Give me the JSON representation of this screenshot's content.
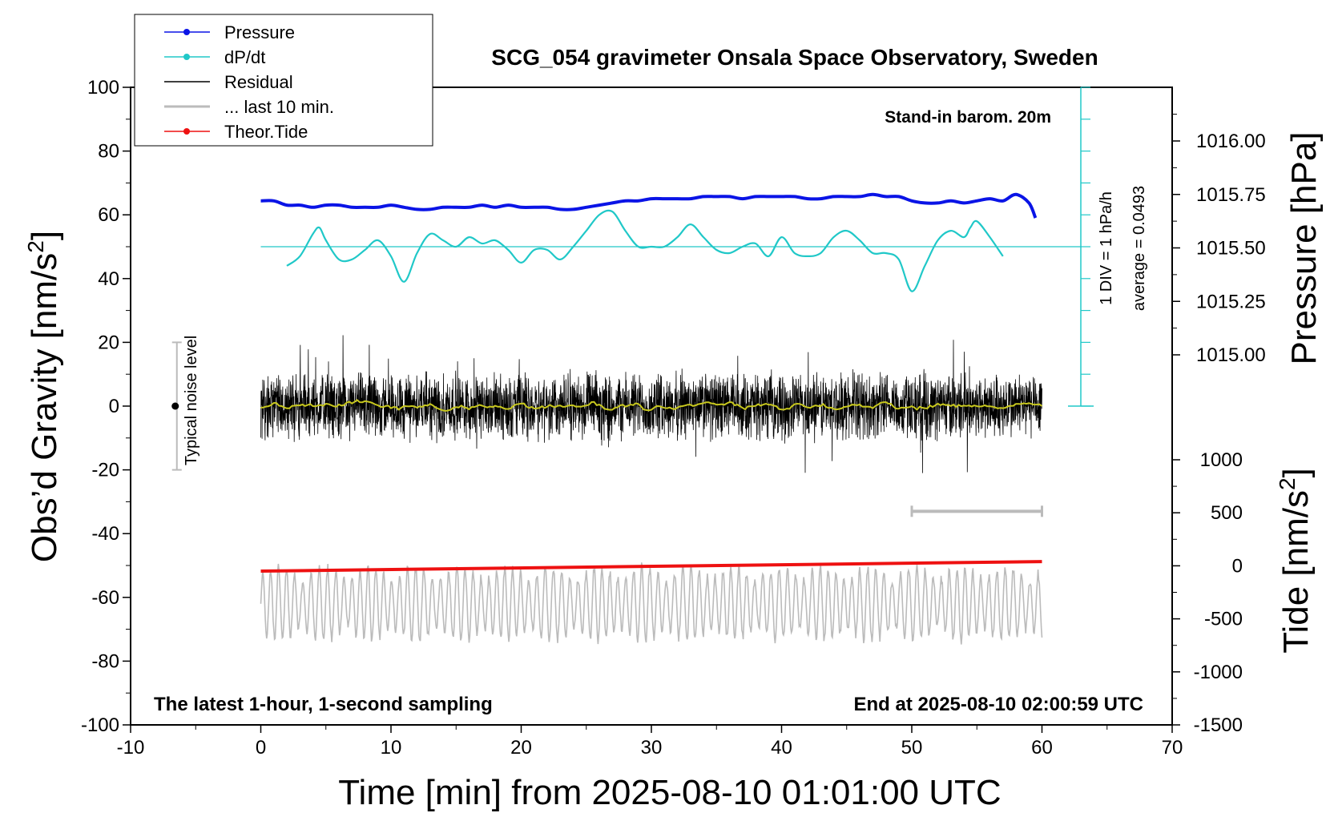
{
  "chart_data": {
    "type": "line",
    "title": "SCG_054 gravimeter Onsala Space Observatory, Sweden",
    "xlabel": "Time [min] from 2025-08-10 01:01:00 UTC",
    "ylabel_left_main": "Obs’d Gravity [nm/s",
    "ylabel_left_sup": "2",
    "ylabel_left_end": "]",
    "ylabel_right_top": "Pressure [hPa]",
    "ylabel_right_bottom_main": "Tide [nm/s",
    "ylabel_right_bottom_sup": "2",
    "ylabel_right_bottom_end": "]",
    "xlim": [
      -10,
      70
    ],
    "ylim_left": [
      -100,
      100
    ],
    "pressure_axis_ylim": [
      1015.0,
      1016.0
    ],
    "tide_axis_ylim": [
      -1500,
      1000
    ],
    "x_ticks": [
      "-10",
      "0",
      "10",
      "20",
      "30",
      "40",
      "50",
      "60",
      "70"
    ],
    "y_left_ticks": [
      "100",
      "80",
      "60",
      "40",
      "20",
      "0",
      "-20",
      "-40",
      "-60",
      "-80",
      "-100"
    ],
    "y_pressure_ticks": [
      "1016.00",
      "1015.75",
      "1015.50",
      "1015.25",
      "1015.00"
    ],
    "y_tide_ticks": [
      "1000",
      "500",
      "0",
      "-500",
      "-1000",
      "-1500"
    ],
    "legend_position": "top-left",
    "legend": [
      {
        "name": "Pressure",
        "color": "#0a14e6",
        "marker": true
      },
      {
        "name": "dP/dt",
        "color": "#20c8c8",
        "marker": true
      },
      {
        "name": "Residual",
        "color": "#000000",
        "marker": false
      },
      {
        "name": "... last 10 min.",
        "color": "#bbbbbb",
        "marker": false
      },
      {
        "name": "Theor.Tide",
        "color": "#ee1111",
        "marker": true
      }
    ],
    "annotations": {
      "barometer": "Stand-in barom. 20m",
      "sampling": "The latest 1-hour, 1-second sampling",
      "end_time": "End at 2025-08-10 02:00:59 UTC",
      "noise_label": "Typical noise level",
      "dpdt_scale": "1 DIV = 1 hPa/h",
      "dpdt_average": "average = 0.0493"
    },
    "colors": {
      "pressure": "#0a14e6",
      "dpdt": "#20c8c8",
      "residual": "#000000",
      "residual_smooth": "#c8c81e",
      "last10": "#bbbbbb",
      "tide": "#ee1111"
    },
    "series": [
      {
        "name": "Pressure",
        "axis": "pressure",
        "x": [
          0,
          1,
          2,
          3,
          4,
          5,
          6,
          7,
          8,
          9,
          10,
          11,
          12,
          13,
          14,
          15,
          16,
          17,
          18,
          19,
          20,
          21,
          22,
          23,
          24,
          25,
          26,
          27,
          28,
          29,
          30,
          31,
          32,
          33,
          34,
          35,
          36,
          37,
          38,
          39,
          40,
          41,
          42,
          43,
          44,
          45,
          46,
          47,
          48,
          49,
          50,
          51,
          52,
          53,
          54,
          55,
          56,
          57,
          58,
          59,
          59.5
        ],
        "values": [
          1015.72,
          1015.72,
          1015.7,
          1015.7,
          1015.69,
          1015.7,
          1015.7,
          1015.69,
          1015.69,
          1015.69,
          1015.7,
          1015.69,
          1015.68,
          1015.68,
          1015.69,
          1015.69,
          1015.69,
          1015.7,
          1015.69,
          1015.7,
          1015.69,
          1015.69,
          1015.69,
          1015.68,
          1015.68,
          1015.69,
          1015.7,
          1015.71,
          1015.72,
          1015.72,
          1015.73,
          1015.73,
          1015.73,
          1015.73,
          1015.74,
          1015.74,
          1015.74,
          1015.73,
          1015.74,
          1015.74,
          1015.74,
          1015.74,
          1015.73,
          1015.73,
          1015.74,
          1015.74,
          1015.74,
          1015.75,
          1015.74,
          1015.74,
          1015.72,
          1015.71,
          1015.71,
          1015.72,
          1015.71,
          1015.72,
          1015.73,
          1015.72,
          1015.75,
          1015.71,
          1015.64
        ]
      },
      {
        "name": "dP/dt",
        "axis": "left",
        "x": [
          2,
          3,
          4,
          4.5,
          5,
          6,
          7,
          8,
          9,
          10,
          11,
          12,
          13,
          14,
          15,
          16,
          17,
          18,
          19,
          20,
          21,
          22,
          23,
          24,
          25,
          26,
          27,
          28,
          29,
          30,
          31,
          32,
          33,
          34,
          35,
          36,
          37,
          38,
          39,
          40,
          41,
          42,
          43,
          44,
          45,
          46,
          47,
          48,
          49,
          50,
          51,
          52,
          53,
          54,
          54.5,
          55,
          56,
          57
        ],
        "values": [
          44,
          47,
          54,
          56,
          52,
          46,
          46,
          49,
          52,
          47,
          39,
          48,
          54,
          52,
          50,
          53,
          51,
          52,
          49,
          45,
          49,
          49,
          46,
          50,
          55,
          60,
          61,
          55,
          50,
          50,
          50,
          53,
          57,
          53,
          49,
          48,
          50,
          51,
          47,
          53,
          48,
          47,
          48,
          53,
          55,
          52,
          48,
          48,
          46,
          36,
          44,
          52,
          55,
          53,
          56,
          58,
          53,
          47
        ]
      },
      {
        "name": "Theor.Tide",
        "axis": "tide",
        "x": [
          0,
          60
        ],
        "values": [
          -50,
          40
        ]
      }
    ],
    "derived_series": [
      {
        "name": "Residual",
        "axis": "left",
        "x_range": [
          0,
          60
        ],
        "typical_amplitude": 8,
        "max": 23,
        "min": -21
      },
      {
        "name": "... last 10 min.",
        "axis": "left",
        "x_range": [
          0,
          60
        ],
        "center": -62,
        "typical_amplitude": 10,
        "max": -44,
        "min": -78
      }
    ],
    "noise_bar": {
      "x": -7,
      "center": 0,
      "min": -20,
      "max": 20
    },
    "dpdt_zero_level": 50,
    "gray_scale_bar_x": [
      50,
      60
    ],
    "gray_scale_bar_y": -33
  }
}
